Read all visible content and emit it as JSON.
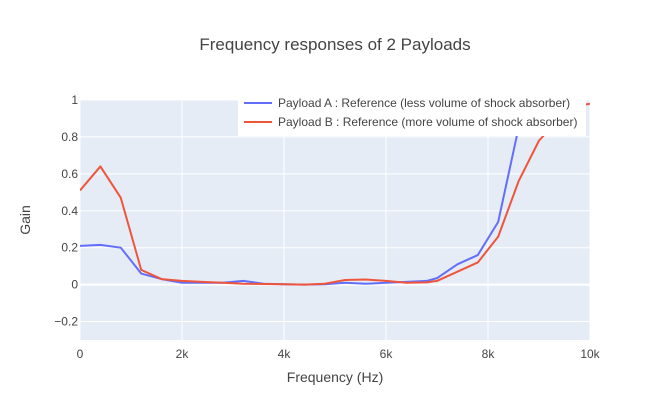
{
  "chart_data": {
    "type": "line",
    "title": "Frequency responses of 2 Payloads",
    "xlabel": "Frequency (Hz)",
    "ylabel": "Gain",
    "xlim": [
      0,
      10000
    ],
    "ylim": [
      -0.3,
      1.0
    ],
    "x_ticks": [
      0,
      2000,
      4000,
      6000,
      8000,
      10000
    ],
    "x_tick_labels": [
      "0",
      "2k",
      "4k",
      "6k",
      "8k",
      "10k"
    ],
    "y_ticks": [
      -0.2,
      0,
      0.2,
      0.4,
      0.6,
      0.8,
      1
    ],
    "y_tick_labels": [
      "−0.2",
      "0",
      "0.2",
      "0.4",
      "0.6",
      "0.8",
      "1"
    ],
    "grid": true,
    "legend_position": "top-right",
    "background_color": "#e5ecf6",
    "series": [
      {
        "name": "Payload A : Reference (less volume of shock absorber)",
        "color": "#636efa",
        "x": [
          0,
          400,
          800,
          1200,
          1600,
          2000,
          2400,
          2800,
          3200,
          3600,
          4000,
          4400,
          4800,
          5200,
          5600,
          6000,
          6400,
          6800,
          7000,
          7400,
          7800,
          8200,
          8600,
          9000,
          9400,
          9800
        ],
        "y": [
          0.21,
          0.215,
          0.2,
          0.06,
          0.03,
          0.01,
          0.01,
          0.01,
          0.02,
          0.005,
          0.002,
          0.0,
          0.002,
          0.01,
          0.005,
          0.01,
          0.015,
          0.02,
          0.035,
          0.11,
          0.16,
          0.34,
          0.85,
          1.05,
          1.1,
          1.1
        ]
      },
      {
        "name": "Payload B : Reference (more volume of shock absorber)",
        "color": "#ef553b",
        "x": [
          0,
          400,
          800,
          1200,
          1600,
          2000,
          2400,
          2800,
          3200,
          3600,
          4000,
          4400,
          4800,
          5200,
          5600,
          6000,
          6400,
          6800,
          7000,
          7400,
          7800,
          8200,
          8600,
          9000,
          9400,
          9800,
          10000
        ],
        "y": [
          0.51,
          0.64,
          0.47,
          0.08,
          0.03,
          0.02,
          0.015,
          0.01,
          0.005,
          0.003,
          0.002,
          0.0,
          0.005,
          0.025,
          0.028,
          0.02,
          0.01,
          0.012,
          0.02,
          0.07,
          0.12,
          0.26,
          0.56,
          0.78,
          0.9,
          0.97,
          0.98
        ]
      }
    ]
  }
}
